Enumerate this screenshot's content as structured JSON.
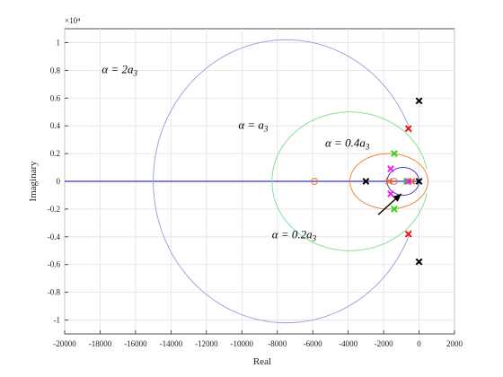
{
  "chart_data": {
    "type": "scatter",
    "title": "",
    "xlabel": "Real",
    "ylabel": "Imaginary",
    "xlim": [
      -20000,
      2000
    ],
    "ylim": [
      -11000,
      11000
    ],
    "y_exponent_label": "×10⁴",
    "x_ticks": [
      -20000,
      -18000,
      -16000,
      -14000,
      -12000,
      -10000,
      -8000,
      -6000,
      -4000,
      -2000,
      0,
      2000
    ],
    "x_tick_labels": [
      "-20000",
      "-18000",
      "-16000",
      "-14000",
      "-12000",
      "-10000",
      "-8000",
      "-6000",
      "-4000",
      "-2000",
      "0",
      "2000"
    ],
    "y_ticks": [
      -10000,
      -8000,
      -6000,
      -4000,
      -2000,
      0,
      2000,
      4000,
      6000,
      8000,
      10000
    ],
    "y_tick_labels": [
      "-1",
      "-0.8",
      "-0.6",
      "-0.4",
      "-0.2",
      "0",
      "0.2",
      "0.4",
      "0.6",
      "0.8",
      "1"
    ],
    "grid": true,
    "real_axis_locus": {
      "x": [
        -20000,
        0
      ],
      "y": [
        0,
        0
      ],
      "color": "#0000cc"
    },
    "series": [
      {
        "color": "#9999dd",
        "center": [
          -7500,
          0
        ],
        "radius_x": 7500,
        "radius_y": 10200,
        "start_angle_deg": 20,
        "poles": [
          [
            0,
            5800
          ],
          [
            0,
            -5800
          ],
          [
            -3000,
            0
          ],
          [
            0,
            0
          ]
        ],
        "pole_color": "#000000"
      },
      {
        "color": "#77dd88",
        "center": [
          -3900,
          0
        ],
        "radius_x": 4400,
        "radius_y": 5000,
        "start_angle_deg": 10,
        "poles": [
          [
            -1400,
            2000
          ],
          [
            -1400,
            -2000
          ],
          [
            -700,
            0
          ]
        ],
        "pole_color": "#22dd22"
      },
      {
        "color": "#ee7722",
        "center": [
          -1700,
          0
        ],
        "radius_x": 2200,
        "radius_y": 2000,
        "start_angle_deg": 0,
        "poles": [
          [
            -1700,
            0
          ],
          [
            -400,
            0
          ]
        ],
        "zeros": [
          [
            -5900,
            0
          ],
          [
            -1400,
            0
          ]
        ],
        "pole_color": "#ee7722"
      },
      {
        "color": "#4422cc",
        "center": [
          -900,
          0
        ],
        "radius_x": 900,
        "radius_y": 1000,
        "start_angle_deg": 0,
        "poles": [
          [
            -1600,
            900
          ],
          [
            -1600,
            -900
          ],
          [
            -600,
            0
          ]
        ],
        "pole_color": "#ee22ee"
      }
    ],
    "extra_poles": {
      "points": [
        [
          -600,
          3800
        ],
        [
          -600,
          -3800
        ]
      ],
      "color": "#ee1111"
    },
    "annotations": [
      {
        "text_base": "α = 2a",
        "sub": "3",
        "x": -17900,
        "y": 7800
      },
      {
        "text_base": "α = a",
        "sub": "3",
        "x": -10200,
        "y": 3800
      },
      {
        "text_base": "α = 0.4a",
        "sub": "3",
        "x": -5300,
        "y": 2500
      },
      {
        "text_base": "α = 0.2a",
        "sub": "3",
        "x": -8300,
        "y": -4100
      }
    ],
    "arrow": {
      "from": [
        -2300,
        -2400
      ],
      "to": [
        -1000,
        -900
      ]
    }
  }
}
